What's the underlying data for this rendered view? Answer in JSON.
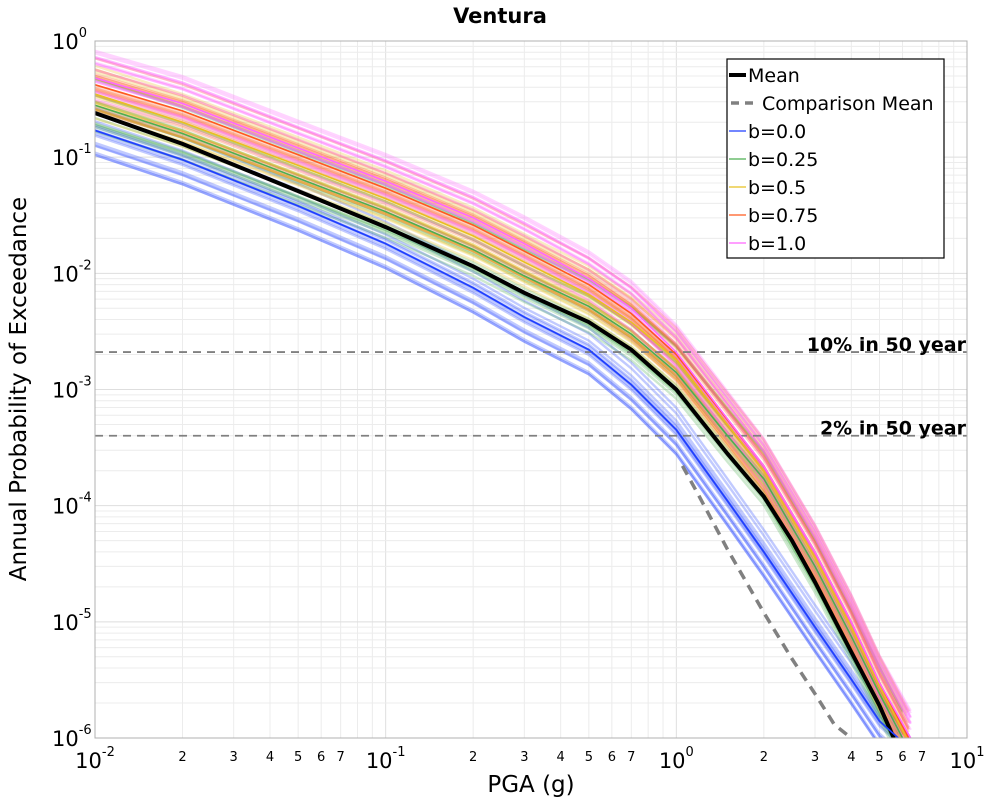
{
  "chart_data": {
    "type": "line",
    "title": "Ventura",
    "xlabel": "PGA (g)",
    "ylabel": "Annual Probability of Exceedance",
    "xscale": "log",
    "yscale": "log",
    "xlim": [
      0.01,
      10
    ],
    "ylim": [
      1e-06,
      1
    ],
    "grid": true,
    "legend_position": "top-right",
    "x_major_ticks": [
      {
        "value": 0.01,
        "base": "10",
        "exp": "-2"
      },
      {
        "value": 0.1,
        "base": "10",
        "exp": "-1"
      },
      {
        "value": 1,
        "base": "10",
        "exp": "0"
      },
      {
        "value": 10,
        "base": "10",
        "exp": "1"
      }
    ],
    "y_major_ticks": [
      {
        "value": 1,
        "base": "10",
        "exp": "0"
      },
      {
        "value": 0.1,
        "base": "10",
        "exp": "-1"
      },
      {
        "value": 0.01,
        "base": "10",
        "exp": "-2"
      },
      {
        "value": 0.001,
        "base": "10",
        "exp": "-3"
      },
      {
        "value": 0.0001,
        "base": "10",
        "exp": "-4"
      },
      {
        "value": 1e-05,
        "base": "10",
        "exp": "-5"
      },
      {
        "value": 1e-06,
        "base": "10",
        "exp": "-6"
      }
    ],
    "x_minor_labels": [
      {
        "value": 0.02,
        "label": "2"
      },
      {
        "value": 0.03,
        "label": "3"
      },
      {
        "value": 0.04,
        "label": "4"
      },
      {
        "value": 0.05,
        "label": "5"
      },
      {
        "value": 0.06,
        "label": "6"
      },
      {
        "value": 0.07,
        "label": "7"
      },
      {
        "value": 0.2,
        "label": "2"
      },
      {
        "value": 0.3,
        "label": "3"
      },
      {
        "value": 0.4,
        "label": "4"
      },
      {
        "value": 0.5,
        "label": "5"
      },
      {
        "value": 0.6,
        "label": "6"
      },
      {
        "value": 0.7,
        "label": "7"
      },
      {
        "value": 2,
        "label": "2"
      },
      {
        "value": 3,
        "label": "3"
      },
      {
        "value": 4,
        "label": "4"
      },
      {
        "value": 5,
        "label": "5"
      },
      {
        "value": 6,
        "label": "6"
      },
      {
        "value": 7,
        "label": "7"
      }
    ],
    "reference_lines": [
      {
        "label": "10% in 50 year",
        "y": 0.0021,
        "color": "#808080"
      },
      {
        "label": "2% in 50 year",
        "y": 0.0004,
        "color": "#808080"
      }
    ],
    "series": [
      {
        "name": "Mean",
        "color": "#000000",
        "style": "solid",
        "x": [
          0.01,
          0.02,
          0.05,
          0.1,
          0.2,
          0.3,
          0.5,
          0.7,
          1.0,
          1.5,
          2.0,
          2.5,
          3.0,
          4.0,
          5.0,
          5.6
        ],
        "y": [
          0.24,
          0.13,
          0.051,
          0.025,
          0.0115,
          0.0068,
          0.0038,
          0.0022,
          0.001,
          0.00028,
          0.00012,
          5e-05,
          2.2e-05,
          5.5e-06,
          1.9e-06,
          1e-06
        ]
      },
      {
        "name": "Comparison Mean",
        "color": "#808080",
        "style": "dashed",
        "x": [
          1.05,
          1.2,
          1.5,
          2.0,
          2.5,
          3.0,
          3.5,
          4.0
        ],
        "y": [
          0.00022,
          0.00012,
          4.2e-05,
          1.2e-05,
          4.8e-06,
          2.4e-06,
          1.3e-06,
          1e-06
        ]
      },
      {
        "name": "b=0.0",
        "color": "#1f3fff",
        "style": "solid",
        "x": [
          0.01,
          0.02,
          0.05,
          0.1,
          0.2,
          0.3,
          0.5,
          0.7,
          1.0,
          1.5,
          2.0,
          3.0,
          4.0,
          5.0,
          5.8
        ],
        "y": [
          0.17,
          0.095,
          0.038,
          0.018,
          0.0075,
          0.0042,
          0.0022,
          0.0011,
          0.00045,
          0.00011,
          4e-05,
          9e-06,
          3.2e-06,
          1.4e-06,
          1e-06
        ]
      },
      {
        "name": "b=0.25",
        "color": "#4caf50",
        "style": "solid",
        "x": [
          0.01,
          0.02,
          0.05,
          0.1,
          0.2,
          0.3,
          0.5,
          0.7,
          1.0,
          1.5,
          2.0,
          3.0,
          4.0,
          5.0,
          6.0
        ],
        "y": [
          0.28,
          0.16,
          0.066,
          0.034,
          0.016,
          0.0095,
          0.0052,
          0.003,
          0.0014,
          0.0004,
          0.00017,
          3e-05,
          7.5e-06,
          2.4e-06,
          1e-06
        ]
      },
      {
        "name": "b=0.5",
        "color": "#e8c020",
        "style": "solid",
        "x": [
          0.01,
          0.02,
          0.05,
          0.1,
          0.2,
          0.3,
          0.5,
          0.7,
          1.0,
          1.5,
          2.0,
          3.0,
          4.0,
          5.0,
          6.2
        ],
        "y": [
          0.35,
          0.2,
          0.085,
          0.044,
          0.021,
          0.0125,
          0.0066,
          0.0038,
          0.0018,
          0.0005,
          0.0002,
          3.6e-05,
          9e-06,
          2.8e-06,
          1e-06
        ]
      },
      {
        "name": "b=0.75",
        "color": "#ff5a1f",
        "style": "solid",
        "x": [
          0.01,
          0.02,
          0.05,
          0.1,
          0.2,
          0.3,
          0.5,
          0.7,
          1.0,
          1.5,
          2.0,
          3.0,
          4.0,
          5.0,
          6.3
        ],
        "y": [
          0.42,
          0.25,
          0.105,
          0.054,
          0.026,
          0.0155,
          0.008,
          0.0045,
          0.002,
          0.00055,
          0.00022,
          4e-05,
          1e-05,
          3e-06,
          1e-06
        ]
      },
      {
        "name": "b=1.0",
        "color": "#ff66ff",
        "style": "solid",
        "x": [
          0.01,
          0.02,
          0.05,
          0.1,
          0.2,
          0.3,
          0.5,
          0.7,
          1.0,
          1.5,
          2.0,
          3.0,
          4.0,
          5.0,
          6.4
        ],
        "y": [
          0.48,
          0.29,
          0.12,
          0.062,
          0.03,
          0.018,
          0.009,
          0.005,
          0.0021,
          0.00056,
          0.00022,
          4e-05,
          1e-05,
          3e-06,
          1e-06
        ]
      }
    ]
  }
}
